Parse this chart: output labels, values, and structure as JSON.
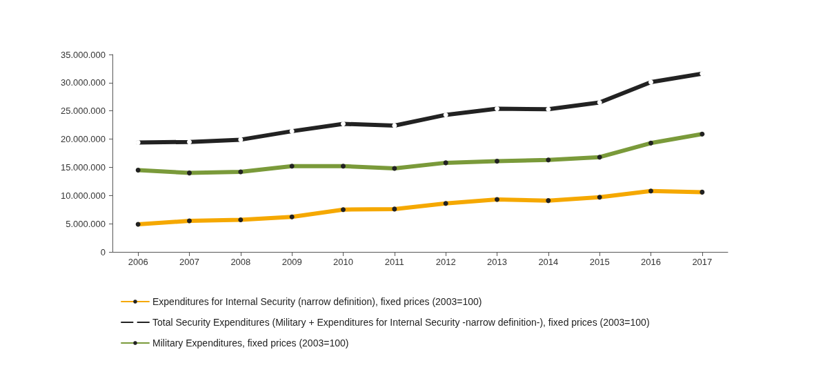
{
  "chart_data": {
    "type": "line",
    "categories": [
      "2006",
      "2007",
      "2008",
      "2009",
      "2010",
      "2011",
      "2012",
      "2013",
      "2014",
      "2015",
      "2016",
      "2017"
    ],
    "series": [
      {
        "name": "Expenditures for Internal Security (narrow definition), fixed prices (2003=100)",
        "color": "#f5a800",
        "values": [
          4900000,
          5500000,
          5700000,
          6200000,
          7500000,
          7600000,
          8600000,
          9300000,
          9100000,
          9700000,
          10800000,
          10600000
        ]
      },
      {
        "name": "Total Security Expenditures (Military + Expenditures for Internal Security -narrow definition-), fixed prices (2003=100)",
        "color": "#222222",
        "values": [
          19400000,
          19500000,
          19900000,
          21400000,
          22700000,
          22400000,
          24300000,
          25400000,
          25300000,
          26500000,
          30100000,
          31600000
        ]
      },
      {
        "name": "Military Expenditures, fixed prices (2003=100)",
        "color": "#7a9a3a",
        "values": [
          14500000,
          14000000,
          14200000,
          15200000,
          15200000,
          14800000,
          15800000,
          16100000,
          16300000,
          16800000,
          19300000,
          20900000
        ]
      }
    ],
    "ylim": [
      0,
      35000000
    ],
    "yticks": [
      0,
      {
        "value": 5000000,
        "label": "5.000.000"
      },
      {
        "value": 10000000,
        "label": "10.000.000"
      },
      {
        "value": 15000000,
        "label": "15.000.000"
      },
      {
        "value": 20000000,
        "label": "20.000.000"
      },
      {
        "value": 25000000,
        "label": "25.000.000"
      },
      {
        "value": 30000000,
        "label": "30.000.000"
      },
      {
        "value": 35000000,
        "label": "35.000.000"
      }
    ],
    "grid": false,
    "legend": "bottom",
    "marker": "circle",
    "line_style": "solid"
  }
}
